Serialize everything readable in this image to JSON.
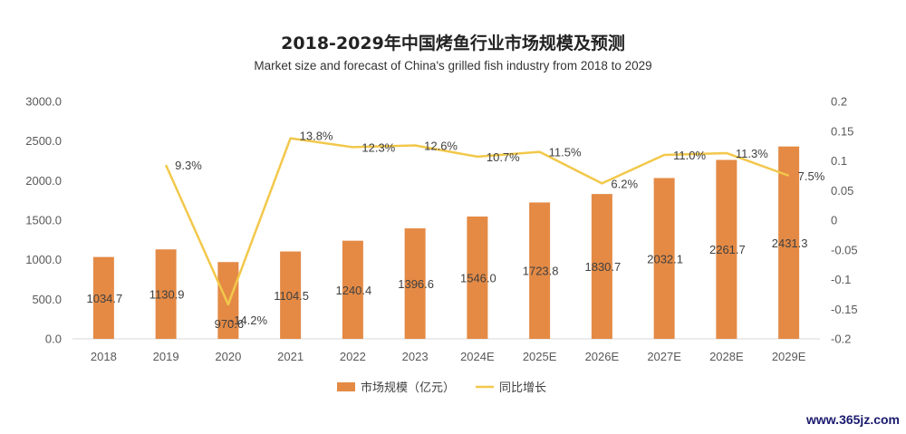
{
  "title": "2018-2029年中国烤鱼行业市场规模及预测",
  "subtitle": "Market size and forecast of China's grilled fish industry from 2018 to 2029",
  "watermark": "www.365jz.com",
  "colors": {
    "bar": "#E48A45",
    "line": "#F2C84B"
  },
  "chart_data": {
    "type": "bar",
    "categories": [
      "2018",
      "2019",
      "2020",
      "2021",
      "2022",
      "2023",
      "2024E",
      "2025E",
      "2026E",
      "2027E",
      "2028E",
      "2029E"
    ],
    "series": [
      {
        "name": "市场规模（亿元）",
        "type": "bar",
        "axis": "left",
        "values": [
          1034.7,
          1130.9,
          970.6,
          1104.5,
          1240.4,
          1396.6,
          1546.0,
          1723.8,
          1830.7,
          2032.1,
          2261.7,
          2431.3
        ],
        "labels": [
          "1034.7",
          "1130.9",
          "970.6",
          "1104.5",
          "1240.4",
          "1396.6",
          "1546.0",
          "1723.8",
          "1830.7",
          "2032.1",
          "2261.7",
          "2431.3"
        ]
      },
      {
        "name": "同比增长",
        "type": "line",
        "axis": "right",
        "values": [
          null,
          0.093,
          -0.142,
          0.138,
          0.123,
          0.126,
          0.107,
          0.115,
          0.062,
          0.11,
          0.113,
          0.075
        ],
        "labels": [
          "",
          "9.3%",
          "-14.2%",
          "13.8%",
          "12.3%",
          "12.6%",
          "10.7%",
          "11.5%",
          "6.2%",
          "11.0%",
          "11.3%",
          "7.5%"
        ]
      }
    ],
    "left_axis": {
      "ylim": [
        0,
        3000
      ],
      "ticks": [
        "0.0",
        "500.0",
        "1000.0",
        "1500.0",
        "2000.0",
        "2500.0",
        "3000.0"
      ]
    },
    "right_axis": {
      "ylim": [
        -0.2,
        0.2
      ],
      "ticks": [
        "-0.2",
        "-0.15",
        "-0.1",
        "-0.05",
        "0",
        "0.05",
        "0.1",
        "0.15",
        "0.2"
      ]
    },
    "grid": false,
    "legend_position": "bottom"
  }
}
